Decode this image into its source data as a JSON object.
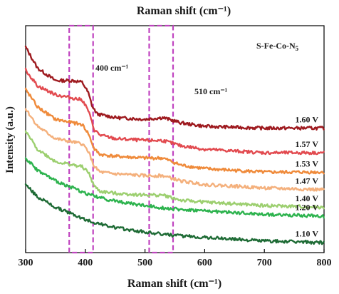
{
  "chart_data": {
    "type": "line",
    "top_title": "Raman shift (cm⁻¹)",
    "xlabel": "Raman shift (cm⁻¹)",
    "ylabel": "Intensity (a.u.)",
    "sample_label": "S-Fe-Co-N",
    "sample_subscript": "5",
    "x_range": [
      300,
      800
    ],
    "x_ticks": [
      "300",
      "400",
      "500",
      "600",
      "700",
      "800"
    ],
    "x_tick_values": [
      300,
      400,
      500,
      600,
      700,
      800
    ],
    "grid": false,
    "annotations": [
      {
        "label": "400 cm⁻¹",
        "range": [
          373,
          413
        ]
      },
      {
        "label": "510 cm⁻¹",
        "range": [
          507,
          547
        ]
      }
    ],
    "highlight_color": "#c044c0",
    "series": [
      {
        "name": "1.60 V",
        "color": "#9e1a1f",
        "x": [
          300,
          320,
          350,
          380,
          395,
          405,
          412,
          420,
          450,
          500,
          530,
          560,
          600,
          700,
          800
        ],
        "y": [
          0.92,
          0.8,
          0.73,
          0.73,
          0.72,
          0.66,
          0.58,
          0.54,
          0.52,
          0.51,
          0.52,
          0.49,
          0.47,
          0.46,
          0.46
        ]
      },
      {
        "name": "1.57 V",
        "color": "#e24a4f",
        "x": [
          300,
          320,
          350,
          380,
          395,
          405,
          415,
          425,
          450,
          500,
          530,
          560,
          600,
          700,
          800
        ],
        "y": [
          0.79,
          0.7,
          0.65,
          0.63,
          0.62,
          0.56,
          0.45,
          0.42,
          0.4,
          0.39,
          0.39,
          0.36,
          0.34,
          0.32,
          0.32
        ]
      },
      {
        "name": "1.53 V",
        "color": "#ef8a3a",
        "x": [
          300,
          320,
          350,
          380,
          395,
          405,
          415,
          425,
          450,
          500,
          530,
          560,
          600,
          700,
          800
        ],
        "y": [
          0.68,
          0.58,
          0.51,
          0.49,
          0.48,
          0.43,
          0.34,
          0.31,
          0.3,
          0.29,
          0.29,
          0.25,
          0.23,
          0.21,
          0.21
        ]
      },
      {
        "name": "1.47 V",
        "color": "#f4b07c",
        "x": [
          300,
          320,
          350,
          380,
          395,
          405,
          415,
          425,
          450,
          500,
          530,
          560,
          600,
          700,
          800
        ],
        "y": [
          0.57,
          0.47,
          0.4,
          0.38,
          0.37,
          0.33,
          0.24,
          0.21,
          0.2,
          0.19,
          0.19,
          0.16,
          0.14,
          0.12,
          0.11
        ]
      },
      {
        "name": "1.40 V",
        "color": "#9ccf6f",
        "x": [
          300,
          320,
          350,
          380,
          395,
          405,
          415,
          425,
          450,
          500,
          530,
          560,
          600,
          700,
          800
        ],
        "y": [
          0.44,
          0.34,
          0.27,
          0.25,
          0.24,
          0.21,
          0.13,
          0.1,
          0.09,
          0.08,
          0.08,
          0.05,
          0.04,
          0.02,
          0.01
        ]
      },
      {
        "name": "1.20 V",
        "color": "#2db34e",
        "x": [
          300,
          320,
          350,
          380,
          400,
          430,
          460,
          500,
          550,
          600,
          700,
          800
        ],
        "y": [
          0.29,
          0.22,
          0.16,
          0.12,
          0.09,
          0.06,
          0.04,
          0.02,
          0.0,
          -0.01,
          -0.03,
          -0.04
        ]
      },
      {
        "name": "1.10 V",
        "color": "#1e6b35",
        "x": [
          300,
          320,
          350,
          380,
          400,
          430,
          460,
          500,
          550,
          600,
          700,
          800
        ],
        "y": [
          0.14,
          0.07,
          0.01,
          -0.03,
          -0.06,
          -0.09,
          -0.11,
          -0.13,
          -0.15,
          -0.16,
          -0.18,
          -0.19
        ]
      }
    ]
  }
}
